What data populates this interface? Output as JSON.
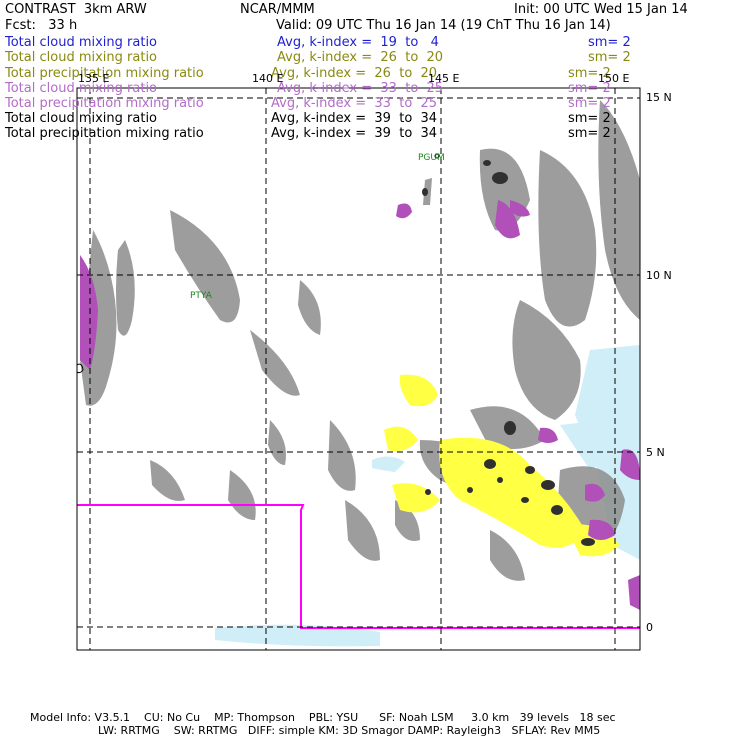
{
  "header": {
    "model": "CONTRAST  3km ARW",
    "org": "NCAR/MMM",
    "init": "Init: 00 UTC Wed 15 Jan 14",
    "fcst": "Fcst:   33 h",
    "valid": "Valid: 09 UTC Thu 16 Jan 14 (19 ChT Thu 16 Jan 14)"
  },
  "legend": [
    {
      "field": "Total cloud mixing ratio",
      "avg": "Avg, k-index =  19  to   4",
      "sm": "sm= 2",
      "color": "#1f1fd0"
    },
    {
      "field": "Total cloud mixing ratio",
      "avg": "Avg, k-index =  26  to  20",
      "sm": "sm= 2",
      "color": "#8a8a10"
    },
    {
      "field": "Total precipitation mixing ratio",
      "avg": "Avg, k-index =  26  to  20",
      "sm": "sm= 2",
      "color": "#8a8a10"
    },
    {
      "field": "Total cloud mixing ratio",
      "avg": "Avg, k-index =  33  to  25",
      "sm": "sm= 2",
      "color": "#b36cc8"
    },
    {
      "field": "Total precipitation mixing ratio",
      "avg": "Avg, k-index =  33  to  25",
      "sm": "sm= 2",
      "color": "#b36cc8"
    },
    {
      "field": "Total cloud mixing ratio",
      "avg": "Avg, k-index =  39  to  34",
      "sm": "sm= 2",
      "color": "#000000"
    },
    {
      "field": "Total precipitation mixing ratio",
      "avg": "Avg, k-index =  39  to  34",
      "sm": "sm= 2",
      "color": "#000000"
    }
  ],
  "map": {
    "lon_labels": [
      "135 E",
      "140 E",
      "145 E",
      "150 E"
    ],
    "lat_labels": [
      "15 N",
      "10 N",
      "5 N",
      "0"
    ],
    "stations": [
      "PGUM",
      "PTYA"
    ],
    "colors": {
      "low_cloud": "#cfeef8",
      "mid_cloud": "#ffff44",
      "high_cloud": "#b050b8",
      "deep_cloud": "#8c8c8c",
      "core": "#303030",
      "box": "#ff00ff"
    }
  },
  "footer": {
    "line1": "Model Info: V3.5.1    CU: No Cu    MP: Thompson    PBL: YSU      SF: Noah LSM     3.0 km   39 levels   18 sec",
    "line2": "LW: RRTMG    SW: RRTMG   DIFF: simple KM: 3D Smagor DAMP: Rayleigh3   SFLAY: Rev MM5"
  }
}
